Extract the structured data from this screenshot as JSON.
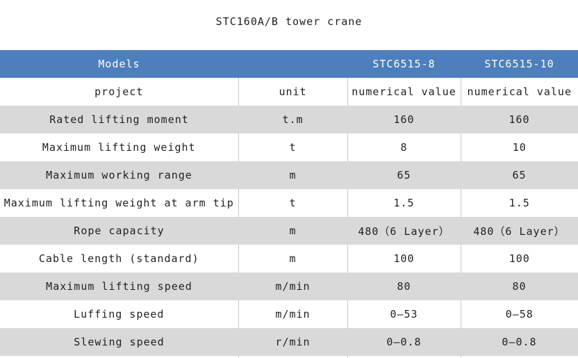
{
  "title": "STC160A/B tower crane",
  "colors": {
    "header_bg": "#4d7fbc",
    "header_text": "#ffffff",
    "row_bg": "#ffffff",
    "row_alt_bg": "#d9d9d9",
    "divider": "#c8c6c6",
    "text": "#1f1f1f"
  },
  "table": {
    "header": {
      "models_label": "Models",
      "spacer": "",
      "model_a": "STC6515-8",
      "model_b": "STC6515-10"
    },
    "rows": [
      {
        "project": "project",
        "unit": "unit",
        "a": "numerical value",
        "b": "numerical value"
      },
      {
        "project": "Rated lifting moment",
        "unit": "t.m",
        "a": "160",
        "b": "160"
      },
      {
        "project": "Maximum lifting weight",
        "unit": "t",
        "a": "8",
        "b": "10"
      },
      {
        "project": "Maximum working range",
        "unit": "m",
        "a": "65",
        "b": "65"
      },
      {
        "project": "Maximum lifting weight at arm tip",
        "unit": "t",
        "a": "1.5",
        "b": "1.5"
      },
      {
        "project": "Rope capacity",
        "unit": "m",
        "a": "480（6 Layer）",
        "b": "480（6 Layer）"
      },
      {
        "project": "Cable length (standard)",
        "unit": "m",
        "a": "100",
        "b": "100"
      },
      {
        "project": "Maximum lifting speed",
        "unit": "m/min",
        "a": "80",
        "b": "80"
      },
      {
        "project": "Luffing speed",
        "unit": "m/min",
        "a": "0—53",
        "b": "0—58"
      },
      {
        "project": "Slewing speed",
        "unit": "r/min",
        "a": "0—0.8",
        "b": "0—0.8"
      }
    ]
  }
}
